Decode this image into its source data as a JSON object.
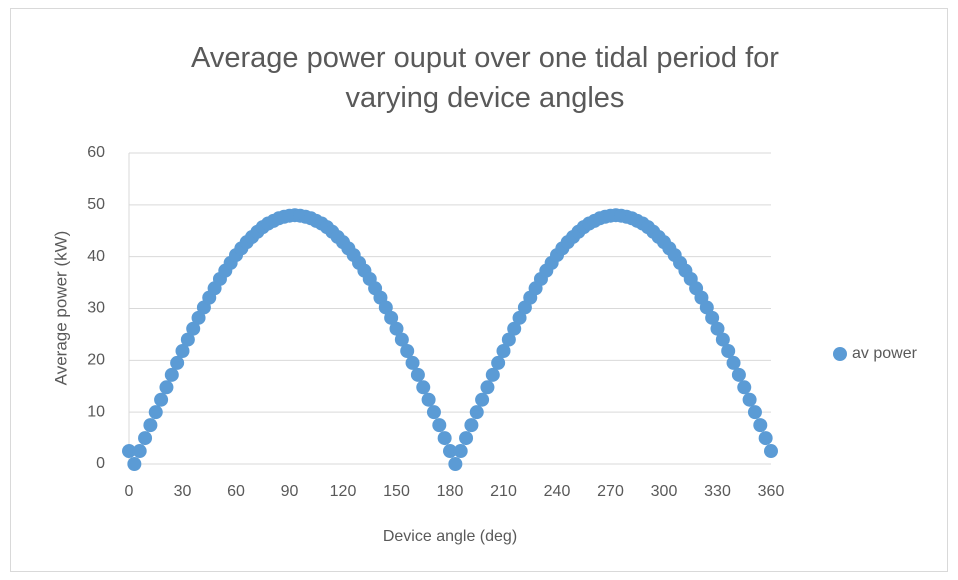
{
  "chart_data": {
    "type": "scatter",
    "title": "Average power ouput over one tidal period for varying device angles",
    "xlabel": "Device angle (deg)",
    "ylabel": "Average power (kW)",
    "x": [
      0,
      3,
      6,
      9,
      12,
      15,
      18,
      21,
      24,
      27,
      30,
      33,
      36,
      39,
      42,
      45,
      48,
      51,
      54,
      57,
      60,
      63,
      66,
      69,
      72,
      75,
      78,
      81,
      84,
      87,
      90,
      93,
      96,
      99,
      102,
      105,
      108,
      111,
      114,
      117,
      120,
      123,
      126,
      129,
      132,
      135,
      138,
      141,
      144,
      147,
      150,
      153,
      156,
      159,
      162,
      165,
      168,
      171,
      174,
      177,
      180,
      183,
      186,
      189,
      192,
      195,
      198,
      201,
      204,
      207,
      210,
      213,
      216,
      219,
      222,
      225,
      228,
      231,
      234,
      237,
      240,
      243,
      246,
      249,
      252,
      255,
      258,
      261,
      264,
      267,
      270,
      273,
      276,
      279,
      282,
      285,
      288,
      291,
      294,
      297,
      300,
      303,
      306,
      309,
      312,
      315,
      318,
      321,
      324,
      327,
      330,
      333,
      336,
      339,
      342,
      345,
      348,
      351,
      354,
      357,
      360
    ],
    "series": [
      {
        "name": "av power",
        "color": "#5b9bd5",
        "values": [
          2.5,
          0,
          2.5,
          5.0,
          7.5,
          10.0,
          12.4,
          14.8,
          17.2,
          19.5,
          21.8,
          24.0,
          26.1,
          28.2,
          30.2,
          32.1,
          33.9,
          35.7,
          37.3,
          38.8,
          40.3,
          41.6,
          42.8,
          43.8,
          44.8,
          45.7,
          46.4,
          46.9,
          47.4,
          47.7,
          47.9,
          48.0,
          47.9,
          47.7,
          47.4,
          46.9,
          46.4,
          45.7,
          44.8,
          43.8,
          42.8,
          41.6,
          40.3,
          38.8,
          37.3,
          35.7,
          33.9,
          32.1,
          30.2,
          28.2,
          26.1,
          24.0,
          21.8,
          19.5,
          17.2,
          14.8,
          12.4,
          10.0,
          7.5,
          5.0,
          2.5,
          0,
          2.5,
          5.0,
          7.5,
          10.0,
          12.4,
          14.8,
          17.2,
          19.5,
          21.8,
          24.0,
          26.1,
          28.2,
          30.2,
          32.1,
          33.9,
          35.7,
          37.3,
          38.8,
          40.3,
          41.6,
          42.8,
          43.8,
          44.8,
          45.7,
          46.4,
          46.9,
          47.4,
          47.7,
          47.9,
          48.0,
          47.9,
          47.7,
          47.4,
          46.9,
          46.4,
          45.7,
          44.8,
          43.8,
          42.8,
          41.6,
          40.3,
          38.8,
          37.3,
          35.7,
          33.9,
          32.1,
          30.2,
          28.2,
          26.1,
          24.0,
          21.8,
          19.5,
          17.2,
          14.8,
          12.4,
          10.0,
          7.5,
          5.0,
          2.5
        ]
      }
    ],
    "xlim": [
      0,
      360
    ],
    "xticks": [
      0,
      30,
      60,
      90,
      120,
      150,
      180,
      210,
      240,
      270,
      300,
      330,
      360
    ],
    "ylim": [
      0,
      60
    ],
    "yticks": [
      0,
      10,
      20,
      30,
      40,
      50,
      60
    ],
    "grid": true,
    "legend": "right"
  }
}
